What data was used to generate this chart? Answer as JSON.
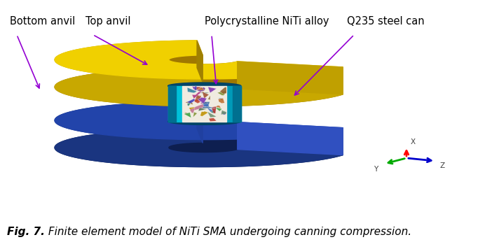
{
  "title_text": "Fig. 7.",
  "caption_text": "  Finite element model of NiTi SMA undergoing canning compression.",
  "labels": {
    "bottom_anvil": "Bottom anvil",
    "top_anvil": "Top anvil",
    "polycrystalline": "Polycrystalline NiTi alloy",
    "steel_can": "Q235 steel can"
  },
  "arrow_color": "#9400D3",
  "background_color": "#ffffff",
  "fig_width": 6.92,
  "fig_height": 3.56,
  "caption_fontsize": 11,
  "label_fontsize": 10.5,
  "bottom_anvil_color_top": "#2244aa",
  "bottom_anvil_color_side": "#1a3580",
  "bottom_anvil_color_dark": "#0e1f50",
  "top_anvil_color_top": "#f0d000",
  "top_anvil_color_side": "#c8a800",
  "top_anvil_color_dark": "#a07800",
  "cyan_light": "#00c0d8",
  "cyan_mid": "#009ab8",
  "cyan_dark": "#007090",
  "grain_bg": "#f0ebe0",
  "grain_colors": [
    "#b03030",
    "#4040c0",
    "#40a040",
    "#c07030",
    "#8030b0",
    "#b03080",
    "#3080a0",
    "#809030",
    "#907040",
    "#c04030",
    "#4070c0",
    "#c09000",
    "#709070",
    "#c07090",
    "#4070a0",
    "#906030",
    "#308070",
    "#703090",
    "#507050",
    "#a05030"
  ]
}
